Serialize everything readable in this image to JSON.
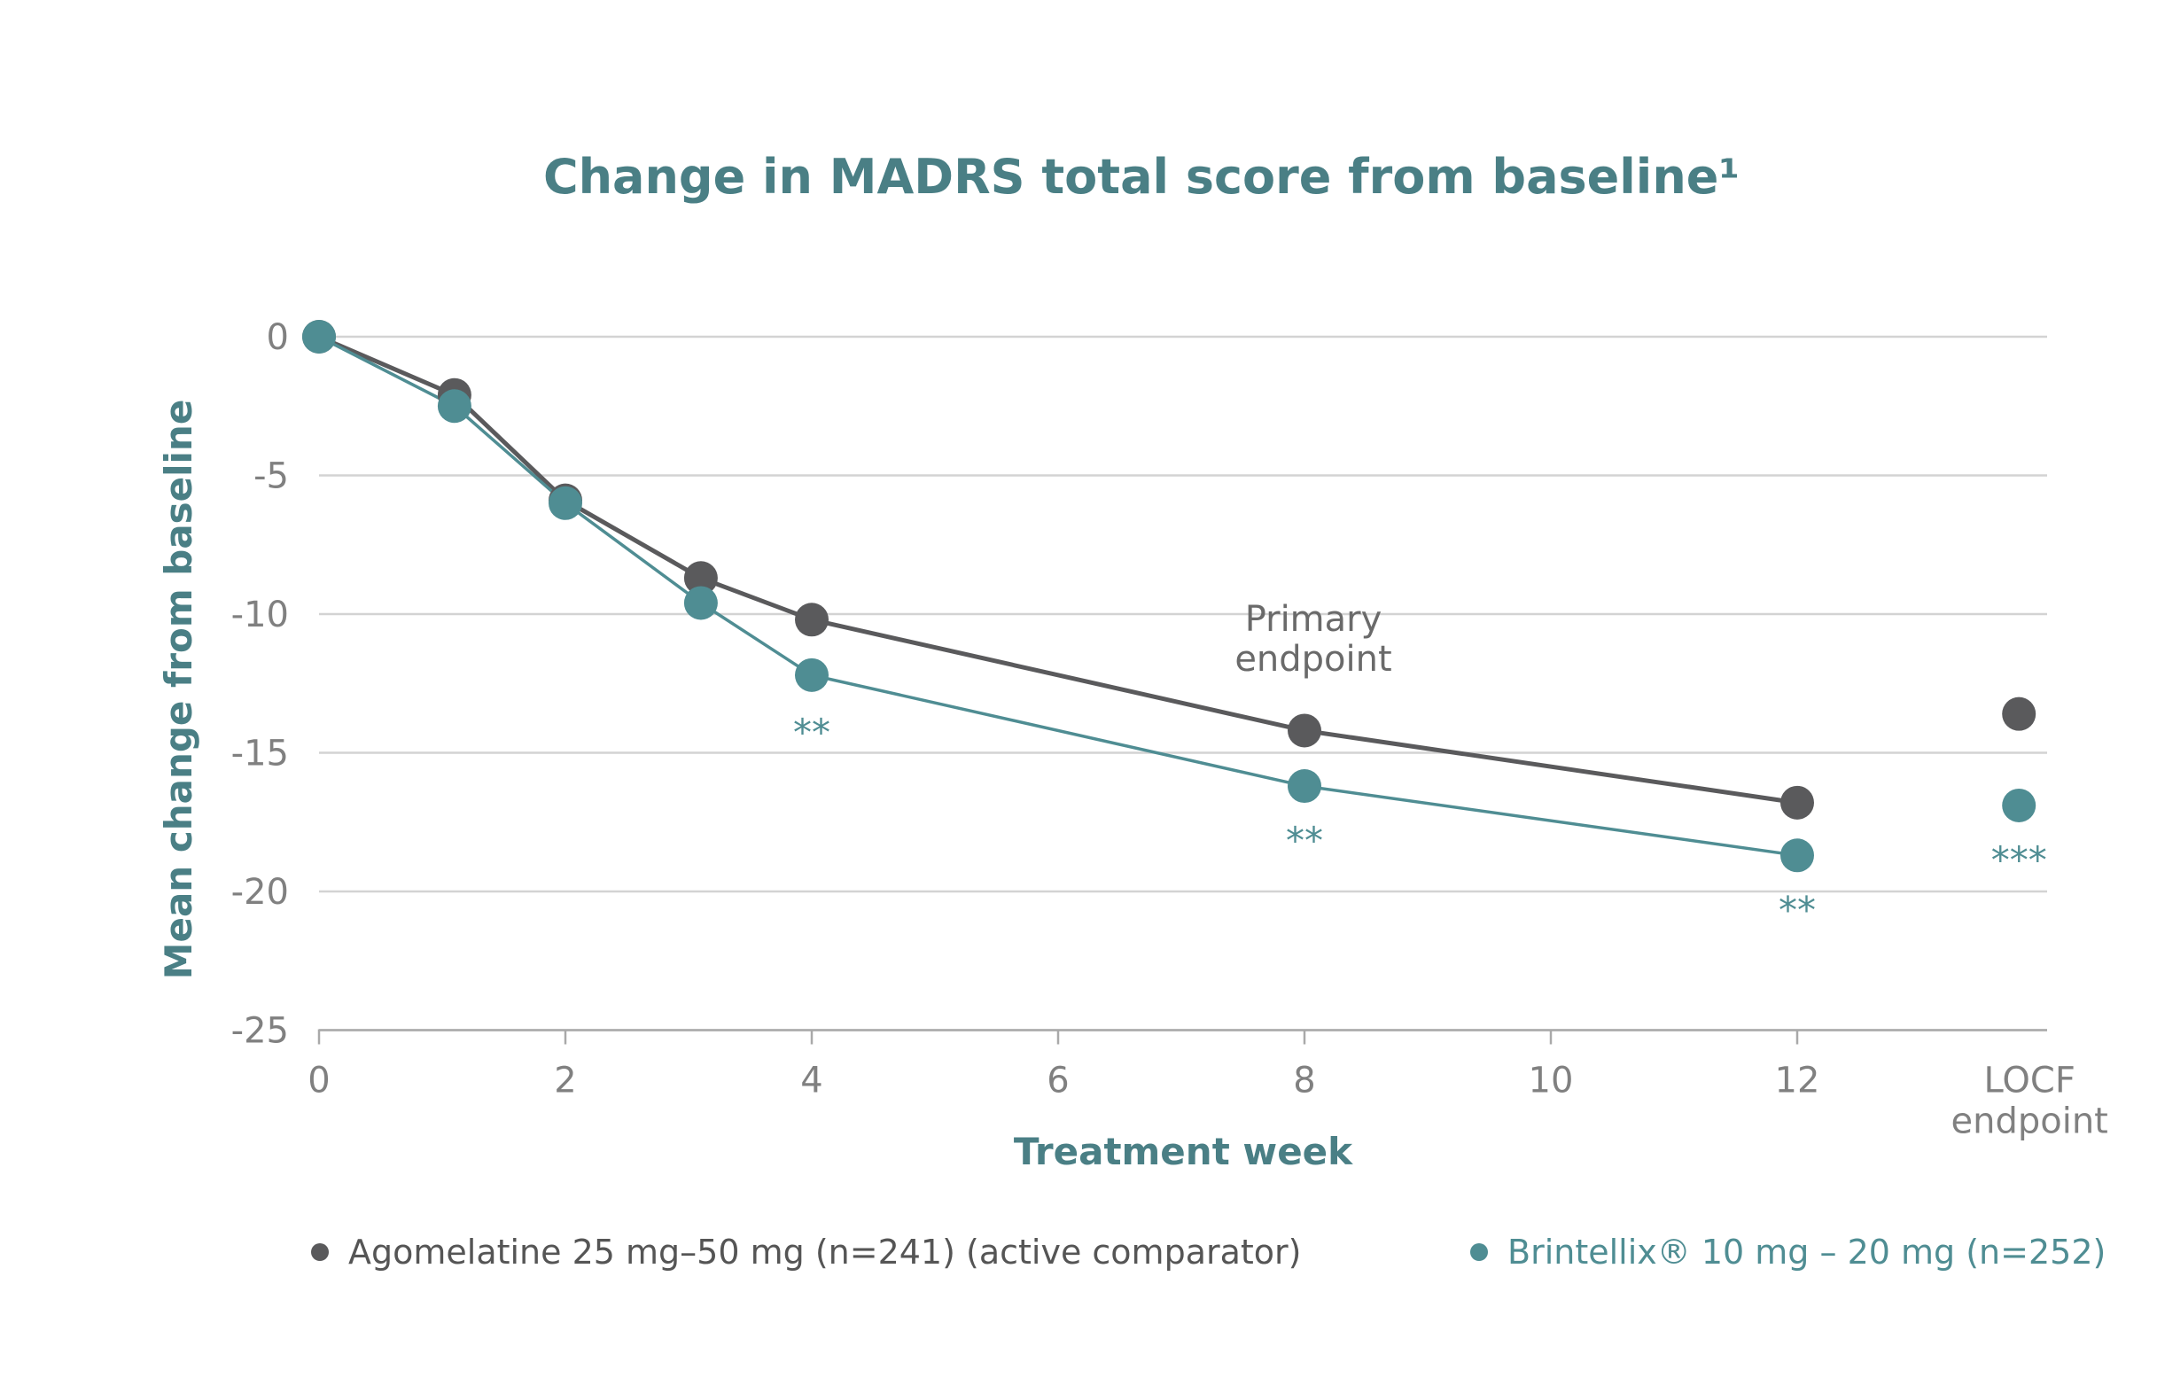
{
  "chart_data": {
    "type": "line",
    "title": "Change in MADRS total score from baseline¹",
    "xlabel": "Treatment week",
    "ylabel": "Mean change from baseline",
    "ylim": [
      -25,
      0
    ],
    "yticks": [
      "0",
      "-5",
      "-10",
      "-15",
      "-20",
      "-25"
    ],
    "ytick_values": [
      0,
      -5,
      -10,
      -15,
      -20,
      -25
    ],
    "xlim": [
      0,
      14
    ],
    "xticks": [
      "0",
      "2",
      "4",
      "6",
      "8",
      "10",
      "12"
    ],
    "xtick_values": [
      0,
      2,
      4,
      6,
      8,
      10,
      12
    ],
    "extra_category": {
      "x": 13.8,
      "lines": [
        "LOCF",
        "endpoint"
      ]
    },
    "grid": true,
    "legend_position": "bottom",
    "colors": {
      "agomelatine": "#5a5a5c",
      "brintellix": "#4f8d93",
      "title": "#4a7f85",
      "grid": "#d3d3d3"
    },
    "series": [
      {
        "name": "Agomelatine 25 mg–50 mg (n=241) (active comparator)",
        "color": "#5a5a5c",
        "x": [
          0,
          1.1,
          2,
          3.1,
          4,
          8,
          12
        ],
        "values": [
          0,
          -2.1,
          -5.9,
          -8.7,
          -10.2,
          -14.2,
          -16.8
        ],
        "endpoint": {
          "x": 13.8,
          "value": -13.6
        }
      },
      {
        "name": "Brintellix® 10 mg – 20 mg (n=252)",
        "color": "#4f8d93",
        "x": [
          0,
          1.1,
          2,
          3.1,
          4,
          8,
          12
        ],
        "values": [
          0,
          -2.5,
          -6.0,
          -9.6,
          -12.2,
          -16.2,
          -18.7
        ],
        "endpoint": {
          "x": 13.8,
          "value": -16.9
        }
      }
    ],
    "annotations": [
      {
        "lines": [
          "Primary",
          "endpoint"
        ],
        "x": 8,
        "y": -10.6
      }
    ],
    "significance": [
      {
        "text": "**",
        "x": 4,
        "y": -13.9
      },
      {
        "text": "**",
        "x": 8,
        "y": -17.8
      },
      {
        "text": "**",
        "x": 12,
        "y": -20.3
      },
      {
        "text": "***",
        "x": 13.8,
        "y": -18.5
      }
    ]
  }
}
